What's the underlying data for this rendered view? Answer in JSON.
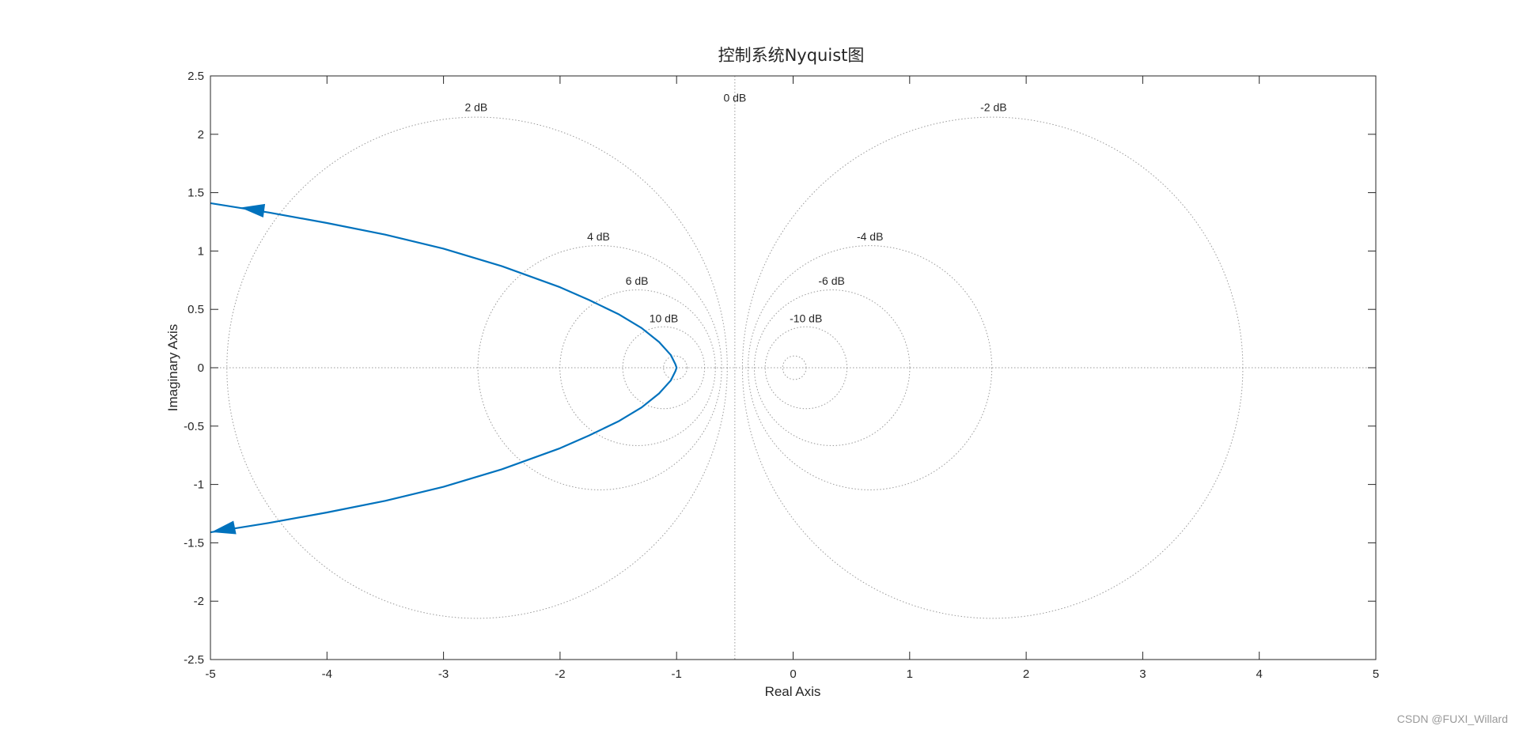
{
  "watermark": "CSDN @FUXI_Willard",
  "chart_data": {
    "type": "line",
    "title": "控制系统Nyquist图",
    "xlabel": "Real Axis",
    "ylabel": "Imaginary Axis",
    "xlim": [
      -5,
      5
    ],
    "ylim": [
      -2.5,
      2.5
    ],
    "xticks": [
      "-5",
      "-4",
      "-3",
      "-2",
      "-1",
      "0",
      "1",
      "2",
      "3",
      "4",
      "5"
    ],
    "yticks": [
      "2.5",
      "2",
      "1.5",
      "1",
      "0.5",
      "0",
      "-0.5",
      "-1",
      "-1.5",
      "-2",
      "-2.5"
    ],
    "grid": "M-circles (dB contours)",
    "grid_labels": [
      {
        "text": "2 dB",
        "x": -2.72,
        "y": 2.2
      },
      {
        "text": "0 dB",
        "x": -0.5,
        "y": 2.28
      },
      {
        "text": "-2 dB",
        "x": 1.72,
        "y": 2.2
      },
      {
        "text": "4 dB",
        "x": -1.67,
        "y": 1.09
      },
      {
        "text": "-4 dB",
        "x": 0.66,
        "y": 1.09
      },
      {
        "text": "6 dB",
        "x": -1.34,
        "y": 0.71
      },
      {
        "text": "-6 dB",
        "x": 0.33,
        "y": 0.71
      },
      {
        "text": "10 dB",
        "x": -1.11,
        "y": 0.39
      },
      {
        "text": "-10 dB",
        "x": 0.11,
        "y": 0.39
      }
    ],
    "mcircles": [
      {
        "center": [
          -2.712,
          0
        ],
        "radius": 2.147
      },
      {
        "center": [
          1.712,
          0
        ],
        "radius": 2.147
      },
      {
        "center": [
          -1.659,
          0
        ],
        "radius": 1.046
      },
      {
        "center": [
          0.659,
          0
        ],
        "radius": 1.046
      },
      {
        "center": [
          -1.334,
          0
        ],
        "radius": 0.667
      },
      {
        "center": [
          0.334,
          0
        ],
        "radius": 0.667
      },
      {
        "center": [
          -1.111,
          0
        ],
        "radius": 0.351
      },
      {
        "center": [
          0.111,
          0
        ],
        "radius": 0.351
      },
      {
        "center": [
          -1.011,
          0
        ],
        "radius": 0.101
      },
      {
        "center": [
          0.011,
          0
        ],
        "radius": 0.101
      }
    ],
    "series": [
      {
        "color": "#0072BD",
        "points": [
          [
            -5.0,
            1.41
          ],
          [
            -4.5,
            1.33
          ],
          [
            -4.0,
            1.24
          ],
          [
            -3.5,
            1.14
          ],
          [
            -3.0,
            1.02
          ],
          [
            -2.5,
            0.87
          ],
          [
            -2.0,
            0.69
          ],
          [
            -1.75,
            0.58
          ],
          [
            -1.5,
            0.46
          ],
          [
            -1.3,
            0.34
          ],
          [
            -1.15,
            0.22
          ],
          [
            -1.05,
            0.11
          ],
          [
            -1.01,
            0.03
          ],
          [
            -1.0,
            0.0
          ],
          [
            -1.01,
            -0.03
          ],
          [
            -1.05,
            -0.11
          ],
          [
            -1.15,
            -0.22
          ],
          [
            -1.3,
            -0.34
          ],
          [
            -1.5,
            -0.46
          ],
          [
            -1.75,
            -0.58
          ],
          [
            -2.0,
            -0.69
          ],
          [
            -2.5,
            -0.87
          ],
          [
            -3.0,
            -1.02
          ],
          [
            -3.5,
            -1.14
          ],
          [
            -4.0,
            -1.24
          ],
          [
            -4.5,
            -1.33
          ],
          [
            -5.0,
            -1.41
          ]
        ],
        "arrows": [
          {
            "at": [
              -4.65,
              1.36
            ],
            "toward": [
              -4.95,
              1.4
            ]
          },
          {
            "at": [
              -4.9,
              -1.39
            ],
            "toward": [
              -5.0,
              -1.41
            ]
          }
        ]
      }
    ]
  }
}
